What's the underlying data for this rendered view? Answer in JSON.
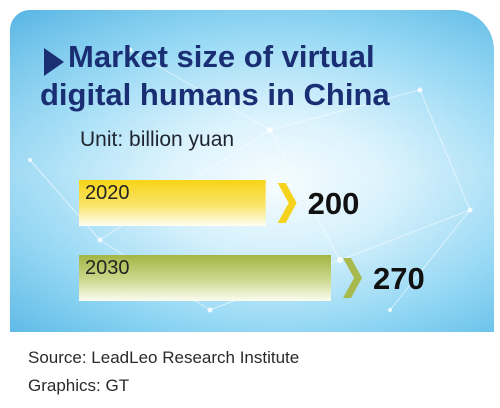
{
  "header": {
    "title_line1": "Market size of virtual",
    "title_line2": "digital humans in China",
    "arrow_icon": "right-triangle-icon"
  },
  "chart_data": {
    "type": "bar",
    "orientation": "horizontal",
    "unit": "Unit: billion yuan",
    "categories": [
      "2020",
      "2030"
    ],
    "values": [
      200,
      270
    ],
    "value_labels": [
      "200",
      "270"
    ],
    "colors": [
      "#f5d21c",
      "#a8b94e"
    ],
    "xlabel": "",
    "ylabel": "",
    "grid": false
  },
  "footer": {
    "source": "Source: LeadLeo Research Institute",
    "credit": "Graphics: GT"
  }
}
